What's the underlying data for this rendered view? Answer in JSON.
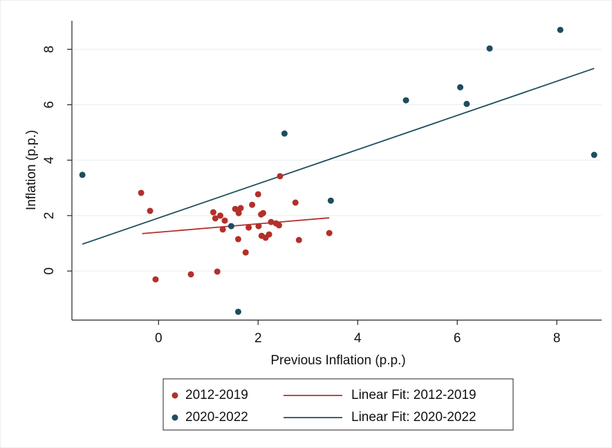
{
  "chart_data": {
    "type": "scatter",
    "xlabel": "Previous Inflation (p.p.)",
    "ylabel": "Inflation (p.p.)",
    "xlim": [
      -1.74,
      8.9
    ],
    "ylim": [
      -1.77,
      9.03
    ],
    "xticks": [
      0,
      2,
      4,
      6,
      8
    ],
    "yticks": [
      0,
      2,
      4,
      6,
      8
    ],
    "grid": true,
    "legend": "bottom",
    "series": [
      {
        "name": "2012-2019",
        "color": "#b3302a",
        "mode": "markers",
        "x": [
          -0.35,
          -0.17,
          -0.06,
          0.65,
          1.18,
          1.1,
          1.14,
          1.24,
          1.33,
          1.29,
          1.54,
          1.61,
          1.65,
          1.6,
          1.75,
          1.81,
          1.88,
          2.0,
          2.01,
          2.06,
          2.1,
          2.07,
          2.15,
          2.22,
          2.26,
          2.36,
          2.42,
          2.44,
          2.75,
          2.82,
          3.43
        ],
        "values": [
          2.82,
          2.17,
          -0.3,
          -0.12,
          -0.02,
          2.12,
          1.9,
          2.0,
          1.82,
          1.5,
          2.24,
          2.09,
          2.27,
          1.15,
          0.67,
          1.57,
          2.39,
          2.77,
          1.62,
          2.04,
          2.09,
          1.27,
          1.2,
          1.32,
          1.77,
          1.72,
          1.65,
          3.42,
          2.47,
          1.12,
          1.37
        ]
      },
      {
        "name": "2020-2022",
        "color": "#1e4d5e",
        "mode": "markers",
        "x": [
          -1.53,
          1.46,
          1.6,
          2.53,
          3.46,
          4.97,
          6.06,
          6.19,
          6.65,
          8.07,
          8.75
        ],
        "values": [
          3.47,
          1.62,
          -1.47,
          4.96,
          2.54,
          6.16,
          6.63,
          6.03,
          8.03,
          8.7,
          4.19
        ]
      },
      {
        "name": "Linear Fit: 2012-2019",
        "color": "#b3302a",
        "mode": "line",
        "x": [
          -0.33,
          3.43
        ],
        "values": [
          1.35,
          1.92
        ]
      },
      {
        "name": "Linear Fit: 2020-2022",
        "color": "#1e4d5e",
        "mode": "line",
        "x": [
          -1.53,
          8.75
        ],
        "values": [
          0.97,
          7.31
        ]
      }
    ]
  }
}
